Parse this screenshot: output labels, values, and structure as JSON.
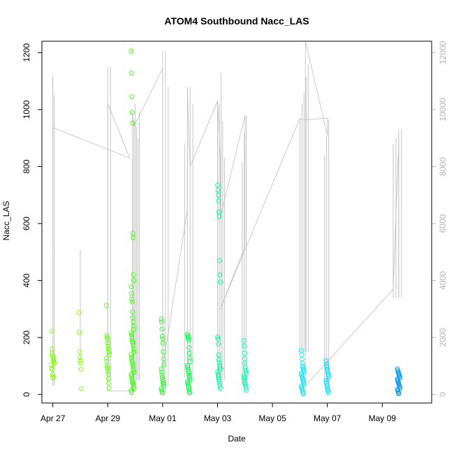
{
  "chart_data": {
    "type": "scatter",
    "title": "ATOM4 Southbound Nacc_LAS",
    "xlabel": "Date",
    "ylabel": "Nacc_LAS",
    "xlim": [
      -0.4,
      13.8
    ],
    "ylim": [
      -30,
      1240
    ],
    "yticks": [
      0,
      200,
      400,
      600,
      800,
      1000,
      1200
    ],
    "y2lim": [
      -300,
      12400
    ],
    "y2ticks": [
      0,
      2000,
      4000,
      6000,
      8000,
      10000,
      12000
    ],
    "xticks": [
      {
        "label": "Apr 27",
        "x": 0
      },
      {
        "label": "Apr 29",
        "x": 2
      },
      {
        "label": "May 01",
        "x": 4
      },
      {
        "label": "May 03",
        "x": 6
      },
      {
        "label": "May 05",
        "x": 8
      },
      {
        "label": "May 07",
        "x": 10
      },
      {
        "label": "May 09",
        "x": 12
      }
    ],
    "colors": {
      "axis": "#000000",
      "secondary_axis": "#b3b3b3",
      "line": "#bebebe"
    },
    "groups": [
      {
        "x": 0.0,
        "color": "#7fff00",
        "values": [
          222,
          160,
          145,
          138,
          130,
          125,
          120,
          115,
          110,
          104,
          92,
          88,
          70,
          62,
          58
        ]
      },
      {
        "x": 1.0,
        "color": "#80ff00",
        "values": [
          288,
          218,
          150,
          130,
          120,
          110,
          88,
          20
        ]
      },
      {
        "x": 2.0,
        "color": "#5eff00",
        "values": [
          312,
          208,
          200,
          192,
          180,
          170,
          160,
          150,
          140,
          128,
          116,
          100,
          92,
          82,
          72,
          56,
          40,
          22
        ]
      },
      {
        "x": 2.9,
        "color": "#33ff00",
        "values": [
          1205,
          1128,
          1045,
          990,
          953,
          565,
          550,
          420,
          400,
          378,
          355,
          335,
          325,
          290,
          270,
          255,
          240,
          228,
          218,
          210,
          200,
          192,
          186,
          180,
          172,
          160,
          150,
          140,
          130,
          122,
          115,
          108,
          100,
          92,
          85,
          78,
          72,
          65,
          58,
          52,
          45,
          40,
          34,
          28,
          22,
          15,
          8
        ]
      },
      {
        "x": 4.0,
        "color": "#22ff22",
        "values": [
          265,
          255,
          230,
          205,
          195,
          180,
          150,
          125,
          105,
          90,
          78,
          68,
          60,
          52,
          45,
          40,
          35,
          28,
          22,
          15,
          10,
          5
        ]
      },
      {
        "x": 4.95,
        "color": "#00ff44",
        "values": [
          212,
          205,
          200,
          195,
          190,
          165,
          145,
          128,
          115,
          102,
          95,
          88,
          80,
          74,
          68,
          62,
          56,
          50,
          45,
          40,
          34,
          28,
          22,
          16,
          10,
          5
        ]
      },
      {
        "x": 6.05,
        "color": "#00ff99",
        "values": [
          735,
          718,
          700,
          680,
          640,
          625,
          470,
          420,
          395,
          202,
          195,
          178,
          140,
          122,
          112,
          102,
          95,
          88,
          80,
          72,
          65,
          58,
          52,
          45,
          38,
          30,
          22
        ]
      },
      {
        "x": 7.0,
        "color": "#00ffb0",
        "values": [
          190,
          170,
          145,
          125,
          110,
          95,
          85,
          78,
          72,
          66,
          60,
          55,
          48,
          42,
          36,
          30,
          22,
          15
        ]
      },
      {
        "x": 9.1,
        "color": "#00eeff",
        "values": [
          155,
          140,
          125,
          110,
          100,
          95,
          90,
          85,
          80,
          75,
          70,
          65,
          60,
          55,
          50,
          45,
          40,
          35,
          30,
          25,
          20,
          15,
          10,
          5,
          2
        ]
      },
      {
        "x": 10.0,
        "color": "#00e0ff",
        "values": [
          118,
          108,
          100,
          95,
          88,
          80,
          72,
          65,
          58,
          50,
          44,
          38,
          30,
          24,
          18,
          12,
          6
        ]
      },
      {
        "x": 12.6,
        "color": "#0099ee",
        "values": [
          90,
          85,
          80,
          76,
          72,
          70,
          66,
          62,
          58,
          54,
          50,
          46,
          42,
          38,
          34,
          30,
          26,
          22,
          18,
          14,
          10,
          6,
          3
        ]
      }
    ],
    "line_series_secondary": [
      [
        0.0,
        5070
      ],
      [
        0.0,
        11170
      ],
      [
        0.0,
        9370
      ],
      [
        2.8,
        8300
      ],
      [
        2.0,
        10200
      ],
      [
        2.0,
        11500
      ],
      [
        2.0,
        120
      ],
      [
        2.9,
        120
      ],
      [
        2.9,
        9900
      ],
      [
        2.95,
        9400
      ],
      [
        4.0,
        11450
      ],
      [
        4.0,
        12050
      ],
      [
        4.0,
        900
      ],
      [
        4.9,
        6500
      ],
      [
        4.9,
        10800
      ],
      [
        4.95,
        9000
      ],
      [
        5.0,
        8000
      ],
      [
        6.0,
        10300
      ],
      [
        6.1,
        8300
      ],
      [
        6.1,
        6200
      ],
      [
        7.0,
        9800
      ],
      [
        7.0,
        5200
      ],
      [
        6.1,
        3000
      ],
      [
        9.0,
        9700
      ],
      [
        9.1,
        9630
      ],
      [
        10.0,
        9700
      ],
      [
        10.0,
        9100
      ],
      [
        9.2,
        12400
      ],
      [
        9.2,
        300
      ],
      [
        12.4,
        3700
      ],
      [
        12.6,
        8800
      ],
      [
        12.6,
        3400
      ],
      [
        12.6,
        9300
      ]
    ],
    "spike_bursts": [
      {
        "x_start": 0.0,
        "x_end": 0.05,
        "peaks": [
          11150,
          10500
        ],
        "base": 300
      },
      {
        "x_start": 1.0,
        "x_end": 1.0,
        "peaks": [
          5070
        ],
        "base": 1200
      },
      {
        "x_start": 2.0,
        "x_end": 2.1,
        "peaks": [
          10200,
          11500
        ],
        "base": 500
      },
      {
        "x_start": 2.9,
        "x_end": 3.15,
        "peaks": [
          8300,
          9600,
          10200,
          9400,
          9000,
          9900
        ],
        "base": 500
      },
      {
        "x_start": 4.0,
        "x_end": 4.2,
        "peaks": [
          11450,
          12050,
          10800
        ],
        "base": 300
      },
      {
        "x_start": 4.8,
        "x_end": 5.1,
        "peaks": [
          8800,
          8850,
          10800,
          10200
        ],
        "base": 600
      },
      {
        "x_start": 6.0,
        "x_end": 6.25,
        "peaks": [
          10300,
          10200,
          11300,
          9600,
          8300
        ],
        "base": 500
      },
      {
        "x_start": 6.9,
        "x_end": 7.05,
        "peaks": [
          8150,
          9200,
          9800
        ],
        "base": 300
      },
      {
        "x_start": 9.0,
        "x_end": 9.3,
        "peaks": [
          9700,
          10200,
          10600,
          11150,
          11600
        ],
        "base": 1500
      },
      {
        "x_start": 9.9,
        "x_end": 10.05,
        "peaks": [
          8400,
          9100,
          9650
        ],
        "base": 300
      },
      {
        "x_start": 12.4,
        "x_end": 12.7,
        "peaks": [
          8800,
          9000,
          9100,
          9300
        ],
        "base": 3400
      }
    ]
  }
}
